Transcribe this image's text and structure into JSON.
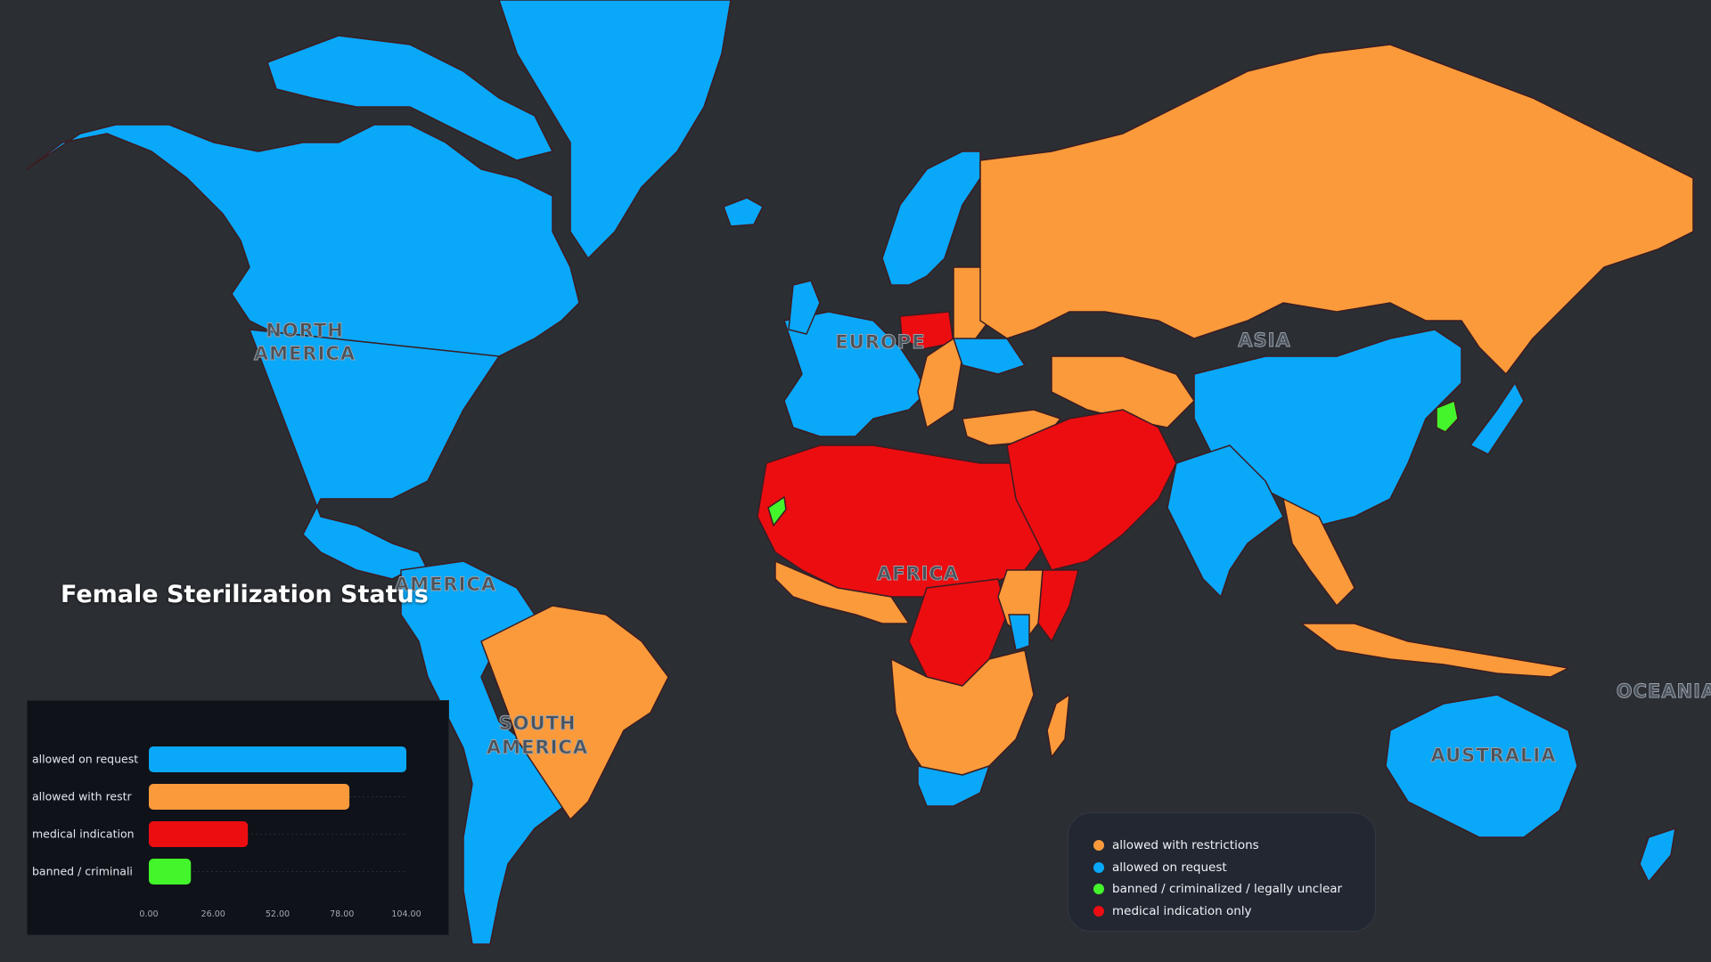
{
  "map": {
    "title": "Female Sterilization Status",
    "region_labels": {
      "north_america": [
        "NORTH",
        "AMERICA"
      ],
      "central_america": "AMERICA",
      "south_america": [
        "SOUTH",
        "AMERICA"
      ],
      "europe": "EUROPE",
      "asia": "ASIA",
      "africa": "AFRICA",
      "oceania": "OCEANIA",
      "australia": "AUSTRALIA"
    },
    "colors": {
      "ocean": "#2b2e33",
      "allowed_with_restrictions": "#fb9a3b",
      "allowed_on_request": "#0aa8f8",
      "banned_criminalized": "#44f52b",
      "medical_indication_only": "#ec0d11",
      "border": "#3a1d22"
    }
  },
  "legend": {
    "items": [
      {
        "label": "allowed with restrictions",
        "color": "#fb9a3b"
      },
      {
        "label": "allowed on request",
        "color": "#0aa8f8"
      },
      {
        "label": "banned / criminalized / legally unclear",
        "color": "#44f52b"
      },
      {
        "label": "medical indication only",
        "color": "#ec0d11"
      }
    ]
  },
  "chart_data": {
    "type": "bar",
    "orientation": "horizontal",
    "categories": [
      "allowed on request",
      "allowed with restr",
      "medical indication",
      "banned / criminali"
    ],
    "values": [
      104,
      81,
      40,
      17
    ],
    "colors": [
      "#0aa8f8",
      "#fb9a3b",
      "#ec0d11",
      "#44f52b"
    ],
    "xlim": [
      0,
      104
    ],
    "tick_labels": [
      "0.00",
      "26.00",
      "52.00",
      "78.00",
      "104.00"
    ],
    "xlabel": "",
    "ylabel": "",
    "grid": true
  }
}
